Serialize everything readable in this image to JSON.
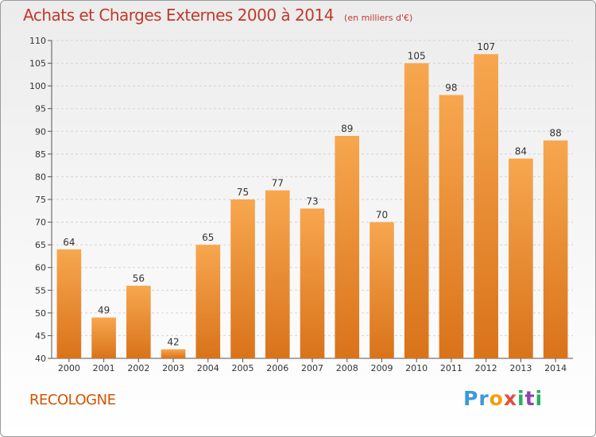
{
  "title": "Achats et Charges Externes 2000 à 2014",
  "unit": "(en milliers d'€)",
  "commune": "RECOLOGNE",
  "logo": {
    "text": "Proxiti",
    "letters": [
      "P",
      "r",
      "o",
      "x",
      "i",
      "t",
      "i"
    ],
    "colors": [
      "#3b9ad9",
      "#3b9ad9",
      "#f39c12",
      "#e74c3c",
      "#27ae60",
      "#8e44ad",
      "#27ae60"
    ]
  },
  "colors": {
    "title": "#c0392b",
    "bar_light": "#f7a74f",
    "bar_dark": "#d9731a",
    "commune": "#d35400"
  },
  "chart_data": {
    "type": "bar",
    "title": "Achats et Charges Externes 2000 à 2014",
    "xlabel": "",
    "ylabel": "(en milliers d'€)",
    "categories": [
      "2000",
      "2001",
      "2002",
      "2003",
      "2004",
      "2005",
      "2006",
      "2007",
      "2008",
      "2009",
      "2010",
      "2011",
      "2012",
      "2013",
      "2014"
    ],
    "values": [
      64,
      49,
      56,
      42,
      65,
      75,
      77,
      73,
      89,
      70,
      105,
      98,
      107,
      84,
      88
    ],
    "ylim": [
      40,
      110
    ],
    "yticks": [
      40,
      45,
      50,
      55,
      60,
      65,
      70,
      75,
      80,
      85,
      90,
      95,
      100,
      105,
      110
    ],
    "grid": true,
    "data_labels": true
  }
}
